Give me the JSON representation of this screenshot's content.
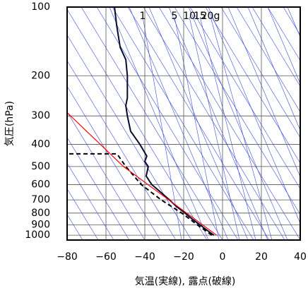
{
  "chart_data": {
    "type": "line",
    "x_label": "気温(実線), 露点(破線)",
    "y_label": "気圧(hPa)",
    "xlim": [
      -80,
      40
    ],
    "ylim": [
      1050,
      100
    ],
    "ylog": true,
    "grid": true,
    "xticks": [
      {
        "value": -80,
        "label": "−80"
      },
      {
        "value": -60,
        "label": "−60"
      },
      {
        "value": -40,
        "label": "−40"
      },
      {
        "value": -20,
        "label": "−20"
      },
      0,
      20,
      40
    ],
    "yticks": [
      100,
      200,
      300,
      400,
      500,
      600,
      700,
      800,
      900,
      1000
    ],
    "annotations": [
      "1",
      "5",
      "10",
      "15",
      "20g"
    ],
    "series": [
      {
        "color": "#0a0a30",
        "dash": false,
        "x": [
          -4.4,
          -8,
          -11.6,
          -15.6,
          -19.3,
          -23.6,
          -27.3,
          -31.6,
          -36.4,
          -39.3,
          -38.2,
          -40,
          -39,
          -42.5,
          -47.3,
          -49,
          -49.8,
          -49,
          -49,
          -49.8,
          -52.7,
          -54.5,
          -55.6
        ],
        "y": [
          1000,
          950,
          900,
          850,
          800,
          750,
          700,
          650,
          600,
          550,
          500,
          475,
          450,
          400,
          350,
          300,
          270,
          250,
          200,
          170,
          150,
          120,
          100
        ]
      },
      {
        "color": "#000000",
        "dash": true,
        "x": [
          -5.5,
          -13,
          -21,
          -31.6,
          -41.8,
          -49.8,
          -53.5,
          -54.5,
          -79.3
        ],
        "y": [
          1000,
          900,
          800,
          700,
          600,
          500,
          450,
          440,
          440
        ]
      },
      {
        "color": "#ff0000",
        "dash": false,
        "x": [
          -3,
          -51,
          -80
        ],
        "y": [
          1000,
          500,
          290
        ]
      }
    ]
  }
}
